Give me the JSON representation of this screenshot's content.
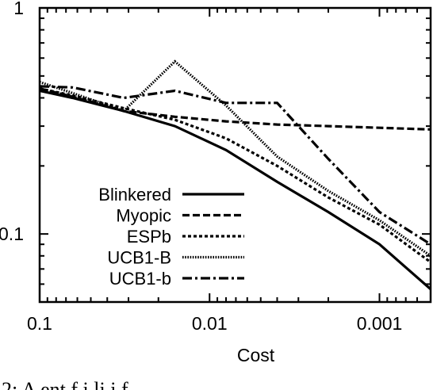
{
  "chart_data": {
    "type": "line",
    "title": "",
    "xlabel": "Cost",
    "ylabel": "",
    "x_scale": "log",
    "x_reversed": true,
    "y_scale": "log",
    "xlim": [
      0.1,
      0.0005
    ],
    "ylim": [
      0.05,
      1
    ],
    "x_ticks": [
      {
        "value": 0.1,
        "label": "0.1"
      },
      {
        "value": 0.01,
        "label": "0.01"
      },
      {
        "value": 0.001,
        "label": "0.001"
      }
    ],
    "y_ticks": [
      {
        "value": 1,
        "label": "1"
      },
      {
        "value": 0.1,
        "label": "0.1"
      }
    ],
    "grid": false,
    "legend_position": "bottom-left",
    "series": [
      {
        "name": "Blinkered",
        "dash": "solid",
        "x": [
          0.1,
          0.064,
          0.032,
          0.016,
          0.008,
          0.004,
          0.002,
          0.001,
          0.0005
        ],
        "y": [
          0.43,
          0.4,
          0.35,
          0.3,
          0.235,
          0.17,
          0.125,
          0.09,
          0.057
        ]
      },
      {
        "name": "Myopic",
        "dash": "dashed",
        "x": [
          0.1,
          0.064,
          0.032,
          0.016,
          0.008,
          0.004,
          0.002,
          0.001,
          0.0005
        ],
        "y": [
          0.44,
          0.405,
          0.35,
          0.33,
          0.315,
          0.305,
          0.3,
          0.295,
          0.29
        ]
      },
      {
        "name": "ESPb",
        "dash": "dotted",
        "x": [
          0.1,
          0.064,
          0.032,
          0.016,
          0.008,
          0.004,
          0.002,
          0.001,
          0.0005
        ],
        "y": [
          0.44,
          0.41,
          0.36,
          0.32,
          0.265,
          0.2,
          0.145,
          0.11,
          0.075
        ]
      },
      {
        "name": "UCB1-B",
        "dash": "dense-dotted",
        "x": [
          0.1,
          0.064,
          0.032,
          0.016,
          0.008,
          0.004,
          0.002,
          0.001,
          0.0005
        ],
        "y": [
          0.47,
          0.42,
          0.35,
          0.58,
          0.37,
          0.22,
          0.155,
          0.115,
          0.08
        ]
      },
      {
        "name": "UCB1-b",
        "dash": "dash-dot",
        "x": [
          0.1,
          0.064,
          0.032,
          0.016,
          0.008,
          0.004,
          0.002,
          0.001,
          0.0005
        ],
        "y": [
          0.45,
          0.445,
          0.4,
          0.43,
          0.38,
          0.38,
          0.215,
          0.125,
          0.09
        ]
      }
    ]
  },
  "caption": "2: A   ent   f  i   li i      f"
}
